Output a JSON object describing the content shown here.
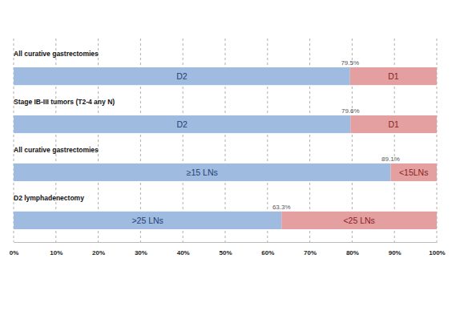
{
  "chart_data": {
    "type": "bar",
    "orientation": "horizontal",
    "stacked": true,
    "grid": true,
    "data_labels": true,
    "categories": [
      "All curative gastrectomies",
      "Stage IB-III tumors (T2-4 any N)",
      "All curative gastrectomies",
      "D2 lymphadenectomy"
    ],
    "series": [
      {
        "color": "#9fbbe0",
        "labels": [
          "D2",
          "D2",
          "≥15 LNs",
          ">25 LNs"
        ],
        "values": [
          79.5,
          79.6,
          89.1,
          63.3
        ],
        "value_labels": [
          "79.5%",
          "79.6%",
          "89.1%",
          "63.3%"
        ]
      },
      {
        "color": "#e4a0a0",
        "labels": [
          "D1",
          "D1",
          "<15LNs",
          "<25 LNs"
        ],
        "values": [
          20.5,
          20.4,
          10.9,
          36.7
        ]
      }
    ],
    "xlim": [
      0,
      100
    ],
    "xticks": [
      {
        "value": 0,
        "label": "0%"
      },
      {
        "value": 10,
        "label": "10%"
      },
      {
        "value": 20,
        "label": "20%"
      },
      {
        "value": 30,
        "label": "30%"
      },
      {
        "value": 40,
        "label": "40%"
      },
      {
        "value": 50,
        "label": "50%"
      },
      {
        "value": 60,
        "label": "60%"
      },
      {
        "value": 70,
        "label": "70%"
      },
      {
        "value": 80,
        "label": "80%"
      },
      {
        "value": 90,
        "label": "90%"
      },
      {
        "value": 100,
        "label": "100%"
      }
    ]
  }
}
